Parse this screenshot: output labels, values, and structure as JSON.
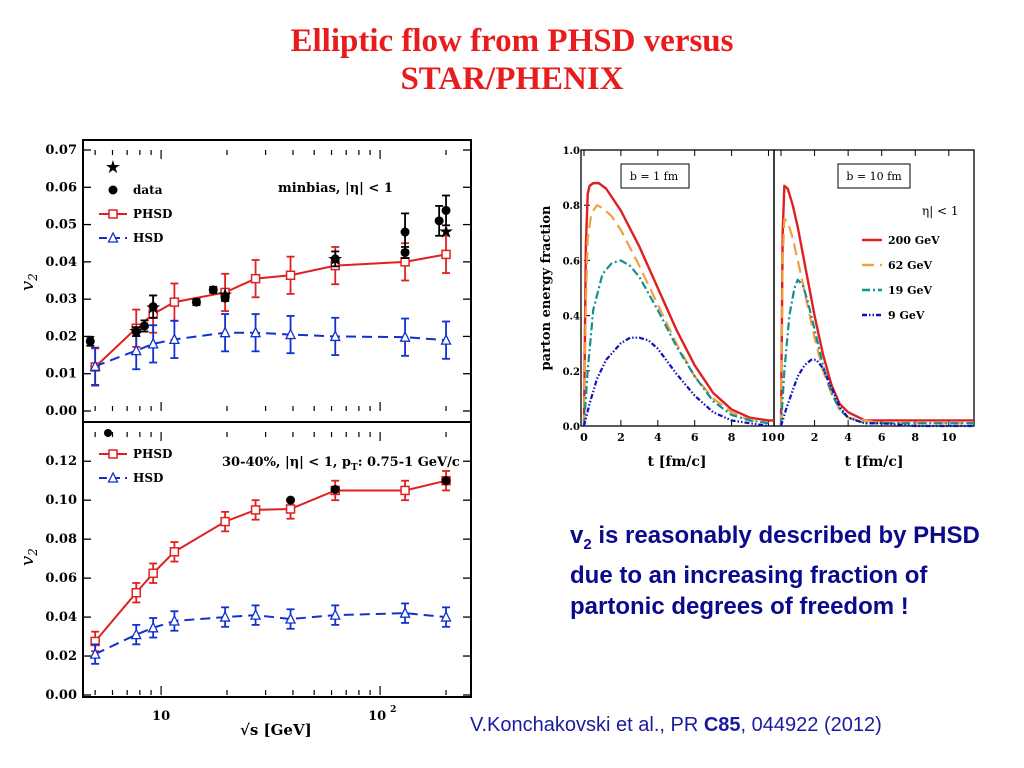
{
  "slide": {
    "title_line1": "Elliptic flow from PHSD versus",
    "title_line2": "STAR/PHENIX",
    "caption_v": "v",
    "caption_sub": "2",
    "caption_rest": " is reasonably described by PHSD due to an increasing fraction of partonic degrees of freedom !",
    "reference_pre": "V.Konchakovski et al., PR ",
    "reference_bold": "C85",
    "reference_post": ", 044922 (2012)"
  },
  "colors": {
    "phsd": "#e02020",
    "hsd": "#1030d0",
    "data": "#000000",
    "c200": "#e02020",
    "c62": "#f0a040",
    "c19": "#109090",
    "c9": "#1010c0"
  },
  "chart_data": [
    {
      "id": "top",
      "type": "scatter",
      "title": "minbias, |η| < 1",
      "ylabel": "v",
      "ylabel_sub": "2",
      "xscale": "log",
      "xlim": [
        4.4,
        260
      ],
      "ylim": [
        0,
        0.07
      ],
      "yticks": [
        "0.00",
        "0.01",
        "0.02",
        "0.03",
        "0.04",
        "0.05",
        "0.06",
        "0.07"
      ],
      "legend": [
        "data",
        "PHSD",
        "HSD"
      ],
      "series": [
        {
          "name": "PHSD",
          "style": "line-square",
          "x": [
            5,
            7.7,
            9.2,
            11.5,
            19.6,
            27,
            39,
            62.4,
            130,
            200
          ],
          "y": [
            0.0118,
            0.0222,
            0.026,
            0.0292,
            0.0318,
            0.0355,
            0.0364,
            0.039,
            0.04,
            0.042
          ],
          "err": [
            0.005,
            0.005,
            0.005,
            0.005,
            0.005,
            0.005,
            0.005,
            0.005,
            0.005,
            0.005
          ]
        },
        {
          "name": "HSD",
          "style": "dash-triangle",
          "x": [
            5,
            7.7,
            9.2,
            11.5,
            19.6,
            27,
            39,
            62.4,
            130,
            200
          ],
          "y": [
            0.012,
            0.0162,
            0.018,
            0.0192,
            0.021,
            0.021,
            0.0205,
            0.02,
            0.0198,
            0.019
          ],
          "err": [
            0.005,
            0.005,
            0.005,
            0.005,
            0.005,
            0.005,
            0.005,
            0.005,
            0.005,
            0.005
          ]
        },
        {
          "name": "data",
          "style": "circle",
          "x": [
            4.75,
            7.7,
            8.4,
            9.2,
            14.5,
            17.3,
            19.6,
            62.4,
            130,
            130,
            186,
            200
          ],
          "y": [
            0.0187,
            0.0213,
            0.0228,
            0.028,
            0.0292,
            0.0325,
            0.0303,
            0.0408,
            0.048,
            0.0425,
            0.051,
            0.0538
          ],
          "err": [
            0.0012,
            0.0012,
            0.0015,
            0.003,
            0.0008,
            0.0008,
            0.0008,
            0.002,
            0.005,
            0.0015,
            0.004,
            0.004
          ]
        },
        {
          "name": "star",
          "style": "star",
          "x": [
            7.7,
            9.2,
            19.6,
            62.4,
            200
          ],
          "y": [
            0.0215,
            0.0278,
            0.0312,
            0.0408,
            0.0482
          ]
        }
      ]
    },
    {
      "id": "bottom",
      "type": "scatter",
      "title": "30-40%, |η| < 1, p",
      "title_sub": "T",
      "title_post": ": 0.75-1 GeV/c",
      "ylabel": "v",
      "ylabel_sub": "2",
      "xlabel": "√s  [GeV]",
      "xscale": "log",
      "xlim": [
        4.4,
        260
      ],
      "ylim": [
        0,
        0.135
      ],
      "yticks": [
        "0.00",
        "0.02",
        "0.04",
        "0.06",
        "0.08",
        "0.10",
        "0.12"
      ],
      "xticks": [
        "10",
        "10"
      ],
      "xtick_sup": "2",
      "legend": [
        "PHSD",
        "HSD"
      ],
      "series": [
        {
          "name": "PHSD",
          "style": "line-square",
          "x": [
            5,
            7.7,
            9.2,
            11.5,
            19.6,
            27,
            39,
            62.4,
            130,
            200
          ],
          "y": [
            0.0275,
            0.0525,
            0.0625,
            0.0735,
            0.089,
            0.095,
            0.0955,
            0.105,
            0.105,
            0.11
          ],
          "err": [
            0.005,
            0.005,
            0.005,
            0.005,
            0.005,
            0.005,
            0.005,
            0.005,
            0.005,
            0.005
          ]
        },
        {
          "name": "HSD",
          "style": "dash-triangle",
          "x": [
            5,
            7.7,
            9.2,
            11.5,
            19.6,
            27,
            39,
            62.4,
            130,
            200
          ],
          "y": [
            0.021,
            0.031,
            0.0345,
            0.038,
            0.04,
            0.041,
            0.039,
            0.041,
            0.042,
            0.04
          ],
          "err": [
            0.005,
            0.005,
            0.005,
            0.005,
            0.005,
            0.005,
            0.005,
            0.005,
            0.005,
            0.005
          ]
        },
        {
          "name": "data",
          "style": "circle",
          "x": [
            39,
            62.4,
            200
          ],
          "y": [
            0.1,
            0.1055,
            0.11
          ],
          "err": [
            0,
            0,
            0
          ]
        }
      ]
    },
    {
      "id": "parton-left",
      "type": "line",
      "label": "b = 1 fm",
      "ylabel": "parton energy fraction",
      "xlabel": "t [fm/c]",
      "xlim": [
        0,
        10.3
      ],
      "ylim": [
        0,
        1.0
      ],
      "xticks": [
        "0",
        "2",
        "4",
        "6",
        "8",
        "10"
      ],
      "yticks": [
        "0.0",
        "0.2",
        "0.4",
        "0.6",
        "0.8",
        "1.0"
      ],
      "series": [
        {
          "name": "200 GeV",
          "style": "solid",
          "x": [
            0,
            0.1,
            0.2,
            0.3,
            0.5,
            0.8,
            1.2,
            2,
            3,
            4,
            5,
            6,
            7,
            8,
            9,
            10,
            10.3
          ],
          "y": [
            0,
            0.65,
            0.84,
            0.87,
            0.88,
            0.88,
            0.86,
            0.78,
            0.65,
            0.5,
            0.35,
            0.22,
            0.12,
            0.06,
            0.03,
            0.02,
            0.02
          ]
        },
        {
          "name": "62 GeV",
          "style": "dash",
          "x": [
            0,
            0.1,
            0.2,
            0.4,
            0.7,
            1,
            1.5,
            2,
            3,
            4,
            5,
            6,
            7,
            8,
            9,
            10
          ],
          "y": [
            0,
            0.45,
            0.68,
            0.77,
            0.8,
            0.79,
            0.76,
            0.71,
            0.58,
            0.44,
            0.3,
            0.18,
            0.1,
            0.05,
            0.02,
            0.01
          ]
        },
        {
          "name": "19 GeV",
          "style": "dashdot",
          "x": [
            0,
            0.2,
            0.5,
            1,
            1.5,
            2,
            2.5,
            3,
            4,
            5,
            6,
            7,
            8,
            9,
            10
          ],
          "y": [
            0,
            0.2,
            0.42,
            0.55,
            0.59,
            0.6,
            0.58,
            0.54,
            0.42,
            0.29,
            0.18,
            0.09,
            0.04,
            0.02,
            0.01
          ]
        },
        {
          "name": "9 GeV",
          "style": "dashdotdot",
          "x": [
            0,
            0.3,
            0.7,
            1.2,
            2,
            2.5,
            3,
            3.5,
            4,
            5,
            6,
            7,
            8,
            9,
            10
          ],
          "y": [
            0,
            0.08,
            0.17,
            0.24,
            0.3,
            0.32,
            0.32,
            0.31,
            0.28,
            0.19,
            0.11,
            0.05,
            0.02,
            0.01,
            0.0
          ]
        }
      ]
    },
    {
      "id": "parton-right",
      "type": "line",
      "label": "b = 10 fm",
      "legend_title": "η| < 1",
      "xlabel": "t [fm/c]",
      "xlim": [
        0,
        11.5
      ],
      "ylim": [
        0,
        1.0
      ],
      "xticks": [
        "0",
        "2",
        "4",
        "6",
        "8",
        "10"
      ],
      "legend": [
        "200 GeV",
        "62 GeV",
        "19 GeV",
        "9 GeV"
      ],
      "series": [
        {
          "name": "200 GeV",
          "style": "solid",
          "x": [
            0,
            0.1,
            0.2,
            0.4,
            0.7,
            1,
            1.5,
            2,
            2.5,
            3,
            3.5,
            4,
            5,
            6,
            7,
            8,
            10,
            11.5
          ],
          "y": [
            0,
            0.7,
            0.87,
            0.86,
            0.8,
            0.72,
            0.56,
            0.4,
            0.26,
            0.15,
            0.08,
            0.05,
            0.02,
            0.02,
            0.02,
            0.02,
            0.02,
            0.02
          ]
        },
        {
          "name": "62 GeV",
          "style": "dash",
          "x": [
            0,
            0.1,
            0.2,
            0.4,
            0.7,
            1,
            1.5,
            2,
            2.5,
            3,
            3.5,
            4,
            5,
            6,
            8,
            10,
            11.5
          ],
          "y": [
            0,
            0.6,
            0.75,
            0.74,
            0.68,
            0.6,
            0.46,
            0.32,
            0.2,
            0.12,
            0.06,
            0.03,
            0.02,
            0.01,
            0.01,
            0.01,
            0.01
          ]
        },
        {
          "name": "19 GeV",
          "style": "dashdot",
          "x": [
            0,
            0.2,
            0.5,
            0.8,
            1,
            1.3,
            1.6,
            2,
            2.5,
            3,
            3.5,
            4,
            5,
            6,
            8,
            10,
            11.5
          ],
          "y": [
            0,
            0.2,
            0.4,
            0.5,
            0.53,
            0.51,
            0.45,
            0.35,
            0.22,
            0.12,
            0.06,
            0.03,
            0.01,
            0.01,
            0.01,
            0.01,
            0.01
          ]
        },
        {
          "name": "9 GeV",
          "style": "dashdotdot",
          "x": [
            0,
            0.3,
            0.7,
            1,
            1.4,
            1.8,
            2.1,
            2.5,
            3,
            3.5,
            4,
            5,
            6,
            8,
            10,
            11.5
          ],
          "y": [
            0,
            0.06,
            0.13,
            0.18,
            0.22,
            0.24,
            0.24,
            0.21,
            0.14,
            0.07,
            0.03,
            0.01,
            0.01,
            0.0,
            0.0,
            0.0
          ]
        }
      ]
    }
  ]
}
